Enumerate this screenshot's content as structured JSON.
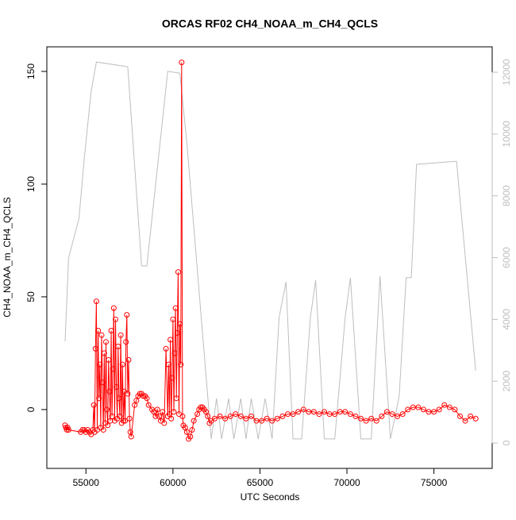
{
  "chart_data": {
    "type": "line",
    "title": "ORCAS RF02 CH4_NOAA_m_CH4_QCLS",
    "x_label": "UTC Seconds",
    "y_label": "CH4_NOAA_m_CH4_QCLS",
    "xlim": [
      52752,
      78348
    ],
    "ylim": [
      -26.1,
      160.9
    ],
    "y2lim": [
      -822,
      12822
    ],
    "xticks": [
      55000,
      60000,
      65000,
      70000,
      75000
    ],
    "yticks": [
      0,
      50,
      100,
      150
    ],
    "y2ticks": [
      0,
      2000,
      4000,
      6000,
      8000,
      10000,
      12000
    ],
    "y2color": "#bebebe",
    "series": [
      {
        "color": "#ff0000",
        "markers": true,
        "x": [
          53800,
          53850,
          53900,
          53950,
          54000,
          54700,
          54800,
          54900,
          55000,
          55100,
          55200,
          55300,
          55400,
          55450,
          55500,
          55550,
          55600,
          55650,
          55700,
          55750,
          55800,
          55850,
          55900,
          55950,
          56000,
          56050,
          56100,
          56150,
          56200,
          56250,
          56300,
          56350,
          56400,
          56450,
          56500,
          56550,
          56600,
          56650,
          56700,
          56750,
          56800,
          56850,
          56900,
          56950,
          57000,
          57050,
          57100,
          57150,
          57200,
          57250,
          57300,
          57350,
          57400,
          57450,
          57500,
          57550,
          57600,
          57800,
          57900,
          58000,
          58100,
          58200,
          58300,
          58400,
          58500,
          58600,
          58800,
          58900,
          59000,
          59100,
          59200,
          59300,
          59400,
          59500,
          59600,
          59700,
          59750,
          59800,
          59850,
          59900,
          59950,
          60000,
          60050,
          60100,
          60150,
          60200,
          60250,
          60300,
          60350,
          60400,
          60450,
          60500,
          60550,
          60600,
          60700,
          60800,
          60900,
          61000,
          61100,
          61200,
          61400,
          61500,
          61600,
          61700,
          61800,
          61900,
          62000,
          62100,
          62200,
          62400,
          62700,
          63000,
          63300,
          63600,
          63900,
          64200,
          64500,
          64800,
          65100,
          65400,
          65700,
          66000,
          66300,
          66600,
          66900,
          67200,
          67500,
          67800,
          68100,
          68400,
          68700,
          69000,
          69300,
          69600,
          69900,
          70200,
          70500,
          70800,
          71100,
          71400,
          71700,
          72000,
          72300,
          72600,
          72900,
          73200,
          73500,
          73800,
          74100,
          74400,
          74700,
          75000,
          75300,
          75600,
          75900,
          76200,
          76500,
          76800,
          77100,
          77400
        ],
        "values": [
          -7,
          -8,
          -9,
          -8,
          -9,
          -10,
          -9,
          -9,
          -10,
          -9,
          -10,
          -11,
          -9,
          2,
          -10,
          27,
          48,
          -9,
          35,
          5,
          20,
          -8,
          33,
          12,
          -9,
          25,
          -6,
          30,
          0,
          -7,
          22,
          8,
          -5,
          35,
          -3,
          18,
          45,
          -5,
          40,
          10,
          -4,
          28,
          5,
          -3,
          33,
          -6,
          20,
          -5,
          8,
          -5,
          30,
          42,
          7,
          22,
          -4,
          -10,
          -12,
          2,
          4,
          6,
          7,
          7,
          6,
          6,
          5,
          2,
          0,
          -1,
          -3,
          0,
          -3,
          -5,
          -1,
          -6,
          27,
          -3,
          20,
          -2,
          31,
          -4,
          14,
          40,
          -1,
          25,
          45,
          5,
          34,
          61,
          -2,
          38,
          20,
          154,
          -3,
          -7,
          -8,
          -10,
          -13,
          -12,
          -9,
          -5,
          -2,
          0,
          1,
          1,
          0,
          -1,
          -3,
          -6,
          -5,
          -4,
          -3,
          -4,
          -3,
          -2,
          -3,
          -4,
          -3,
          -5,
          -5,
          -4,
          -5,
          -4,
          -3,
          -2,
          -2,
          -1,
          0,
          -1,
          -1,
          -2,
          -1,
          -2,
          -2,
          -1,
          -1,
          -2,
          -3,
          -4,
          -5,
          -4,
          -5,
          -3,
          -1,
          -2,
          -3,
          -2,
          0,
          1,
          1,
          0,
          -1,
          -1,
          0,
          2,
          1,
          0,
          -3,
          -5,
          -3,
          -4
        ]
      },
      {
        "color": "#bebebe",
        "axis": "y2",
        "markers": false,
        "x": [
          53800,
          54000,
          54600,
          54900,
          55300,
          55600,
          57400,
          58200,
          58500,
          59700,
          60400,
          60800,
          62200,
          62500,
          62800,
          63200,
          63500,
          63900,
          64200,
          64500,
          64900,
          65300,
          65700,
          66100,
          66500,
          66900,
          67400,
          67900,
          68200,
          68700,
          69300,
          69900,
          70200,
          70800,
          71400,
          71900,
          72500,
          73000,
          73400,
          73700,
          74000,
          76300,
          77400
        ],
        "values": [
          3290,
          5990,
          7270,
          9200,
          11380,
          12330,
          12180,
          5730,
          5730,
          12030,
          11970,
          9710,
          130,
          1440,
          130,
          1440,
          130,
          1440,
          130,
          1440,
          130,
          1440,
          130,
          4060,
          5220,
          130,
          130,
          4060,
          5270,
          130,
          130,
          4060,
          5350,
          130,
          130,
          5400,
          130,
          1500,
          5350,
          5350,
          9020,
          9120,
          2340
        ]
      }
    ]
  }
}
